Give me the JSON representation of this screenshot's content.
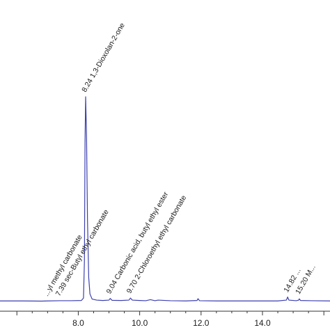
{
  "chart_data": {
    "type": "line",
    "title": "",
    "xlabel": "",
    "ylabel": "",
    "xlim": [
      5.45,
      16.2
    ],
    "ylim": [
      0,
      105
    ],
    "grid": false,
    "series": [
      {
        "color": "#3b3fb0",
        "x": [
          5.45,
          6.2,
          6.8,
          7.0,
          7.4,
          7.75,
          8.1,
          8.17,
          8.2,
          8.22,
          8.24,
          8.27,
          8.3,
          8.34,
          8.38,
          8.45,
          8.6,
          8.8,
          9.0,
          9.04,
          9.1,
          9.4,
          9.65,
          9.7,
          9.76,
          10.0,
          10.2,
          10.35,
          10.5,
          10.6,
          11.0,
          11.5,
          11.87,
          11.9,
          11.95,
          12.5,
          13.0,
          13.5,
          14.0,
          14.5,
          14.78,
          14.82,
          14.86,
          15.1,
          15.18,
          15.2,
          15.24,
          15.6,
          16.2
        ],
        "y": [
          0.6,
          0.6,
          0.5,
          0.6,
          0.7,
          0.7,
          0.8,
          2.0,
          20.0,
          78.0,
          100.0,
          80.0,
          40.0,
          12.0,
          4.0,
          1.5,
          1.0,
          0.8,
          1.0,
          1.8,
          0.9,
          0.8,
          1.0,
          2.0,
          1.0,
          0.8,
          0.7,
          1.2,
          0.7,
          1.0,
          0.7,
          0.6,
          0.8,
          1.7,
          0.7,
          0.6,
          0.6,
          0.6,
          0.6,
          0.6,
          1.0,
          2.5,
          1.0,
          0.7,
          1.0,
          1.6,
          0.8,
          0.7,
          0.6
        ]
      }
    ],
    "x_ticks": [
      {
        "value": 8.0,
        "label": "8.0"
      },
      {
        "value": 10.0,
        "label": "10.0"
      },
      {
        "value": 12.0,
        "label": "12.0"
      },
      {
        "value": 14.0,
        "label": "14.0"
      }
    ],
    "annotations": [
      {
        "x": 7.0,
        "y": 0.6,
        "text": "...yl methyl carbonate"
      },
      {
        "x": 7.39,
        "y": 0.7,
        "text": "7.39 sec-Butyl ethyl carbonate"
      },
      {
        "x": 8.24,
        "y": 100.0,
        "text": "8.24 1,3-Dioxolan-2-one"
      },
      {
        "x": 9.04,
        "y": 1.8,
        "text": "9.04 Carbonic acid, butyl ethyl ester"
      },
      {
        "x": 9.7,
        "y": 2.0,
        "text": "9.70 2-Chloroethyl ethyl carbonate"
      },
      {
        "x": 14.82,
        "y": 2.5,
        "text": "14.82 ..."
      },
      {
        "x": 15.2,
        "y": 1.6,
        "text": "15.20 M..."
      }
    ]
  }
}
